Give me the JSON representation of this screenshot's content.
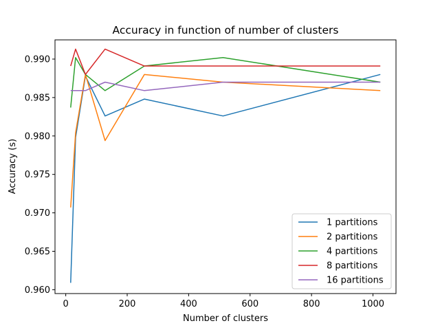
{
  "chart_data": {
    "type": "line",
    "title": "Accuracy in function of number of clusters",
    "xlabel": "Number of clusters",
    "ylabel": "Accuracy (s)",
    "xlim": [
      -35,
      1075
    ],
    "ylim": [
      0.9595,
      0.9925
    ],
    "xticks": [
      0,
      200,
      400,
      600,
      800,
      1000
    ],
    "xtick_labels": [
      "0",
      "200",
      "400",
      "600",
      "800",
      "1000"
    ],
    "yticks": [
      0.96,
      0.965,
      0.97,
      0.975,
      0.98,
      0.985,
      0.99
    ],
    "ytick_labels": [
      "0.960",
      "0.965",
      "0.970",
      "0.975",
      "0.980",
      "0.985",
      "0.990"
    ],
    "grid": false,
    "legend_position": "lower-right",
    "x": [
      16,
      32,
      64,
      128,
      256,
      512,
      1024
    ],
    "series": [
      {
        "name": "1 partitions",
        "color": "#1f77b4",
        "values": [
          0.9609,
          0.9798,
          0.9878,
          0.9826,
          0.9848,
          0.9826,
          0.988
        ]
      },
      {
        "name": "2 partitions",
        "color": "#ff7f0e",
        "values": [
          0.9707,
          0.9804,
          0.988,
          0.9794,
          0.988,
          0.987,
          0.9859
        ]
      },
      {
        "name": "4 partitions",
        "color": "#2ca02c",
        "values": [
          0.9837,
          0.9902,
          0.988,
          0.9859,
          0.9891,
          0.9902,
          0.987
        ]
      },
      {
        "name": "8 partitions",
        "color": "#d62728",
        "values": [
          0.9891,
          0.9913,
          0.988,
          0.9913,
          0.9891,
          0.9891,
          0.9891
        ]
      },
      {
        "name": "16 partitions",
        "color": "#9467bd",
        "values": [
          0.9859,
          0.9859,
          0.9859,
          0.987,
          0.9859,
          0.987,
          0.987
        ]
      }
    ]
  }
}
